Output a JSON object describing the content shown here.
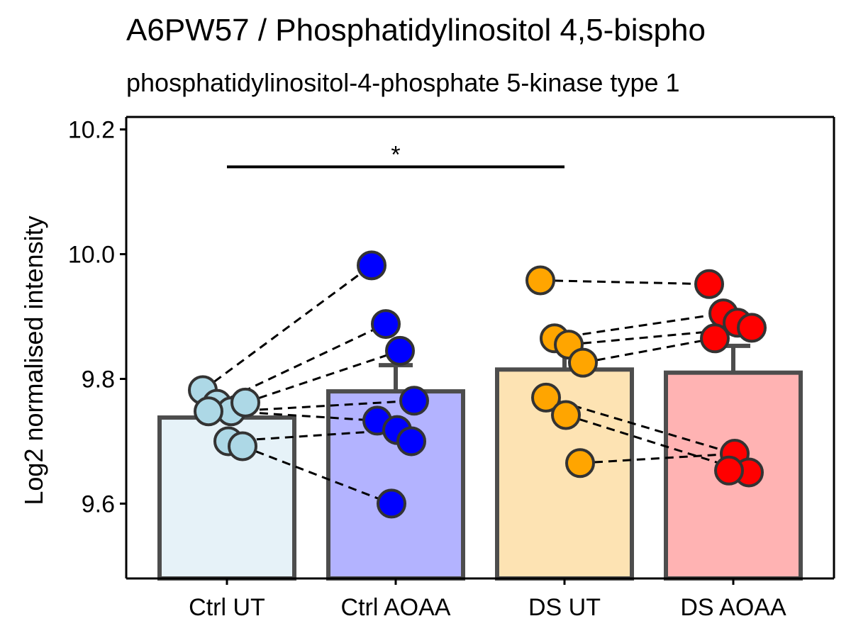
{
  "chart_data": {
    "type": "bar",
    "title": "A6PW57 / Phosphatidylinositol 4,5-bispho",
    "subtitle": "phosphatidylinositol-4-phosphate 5-kinase type 1",
    "xlabel": "",
    "ylabel": "Log2 normalised intensity",
    "ylim": [
      9.48,
      10.22
    ],
    "yticks": [
      9.6,
      9.8,
      10.0,
      10.2
    ],
    "ytick_labels": [
      "9.6",
      "9.8",
      "10.0",
      "10.2"
    ],
    "grid": false,
    "categories": [
      "Ctrl UT",
      "Ctrl AOAA",
      "DS UT",
      "DS AOAA"
    ],
    "bar_colors": [
      "#e6f2f8",
      "#b3b3ff",
      "#fde3b3",
      "#ffb3b3"
    ],
    "point_colors": [
      "#add8e6",
      "#0000ff",
      "#ffa500",
      "#ff0000"
    ],
    "values": [
      9.738,
      9.78,
      9.815,
      9.81
    ],
    "error_upper": [
      null,
      9.822,
      9.848,
      9.853
    ],
    "points": [
      [
        9.782,
        9.76,
        9.748,
        9.762,
        9.748,
        9.7,
        9.692
      ],
      [
        9.982,
        9.888,
        9.845,
        9.765,
        9.733,
        9.718,
        9.7,
        9.6
      ],
      [
        9.958,
        9.865,
        9.855,
        9.826,
        9.77,
        9.742,
        9.665
      ],
      [
        9.952,
        9.905,
        9.89,
        9.882,
        9.865,
        9.68,
        9.65,
        9.653
      ]
    ],
    "paired_lines": [
      [
        0,
        9.782,
        1,
        9.982
      ],
      [
        0,
        9.76,
        1,
        9.888
      ],
      [
        0,
        9.762,
        1,
        9.845
      ],
      [
        0,
        9.748,
        1,
        9.765
      ],
      [
        0,
        9.748,
        1,
        9.733
      ],
      [
        0,
        9.7,
        1,
        9.718
      ],
      [
        0,
        9.692,
        1,
        9.6
      ],
      [
        2,
        9.958,
        3,
        9.952
      ],
      [
        2,
        9.865,
        3,
        9.905
      ],
      [
        2,
        9.855,
        3,
        9.882
      ],
      [
        2,
        9.826,
        3,
        9.865
      ],
      [
        2,
        9.77,
        3,
        9.68
      ],
      [
        2,
        9.742,
        3,
        9.65
      ],
      [
        2,
        9.665,
        3,
        9.68
      ]
    ],
    "significance": {
      "from": 0,
      "to": 2,
      "y": 10.14,
      "label": "*"
    }
  }
}
